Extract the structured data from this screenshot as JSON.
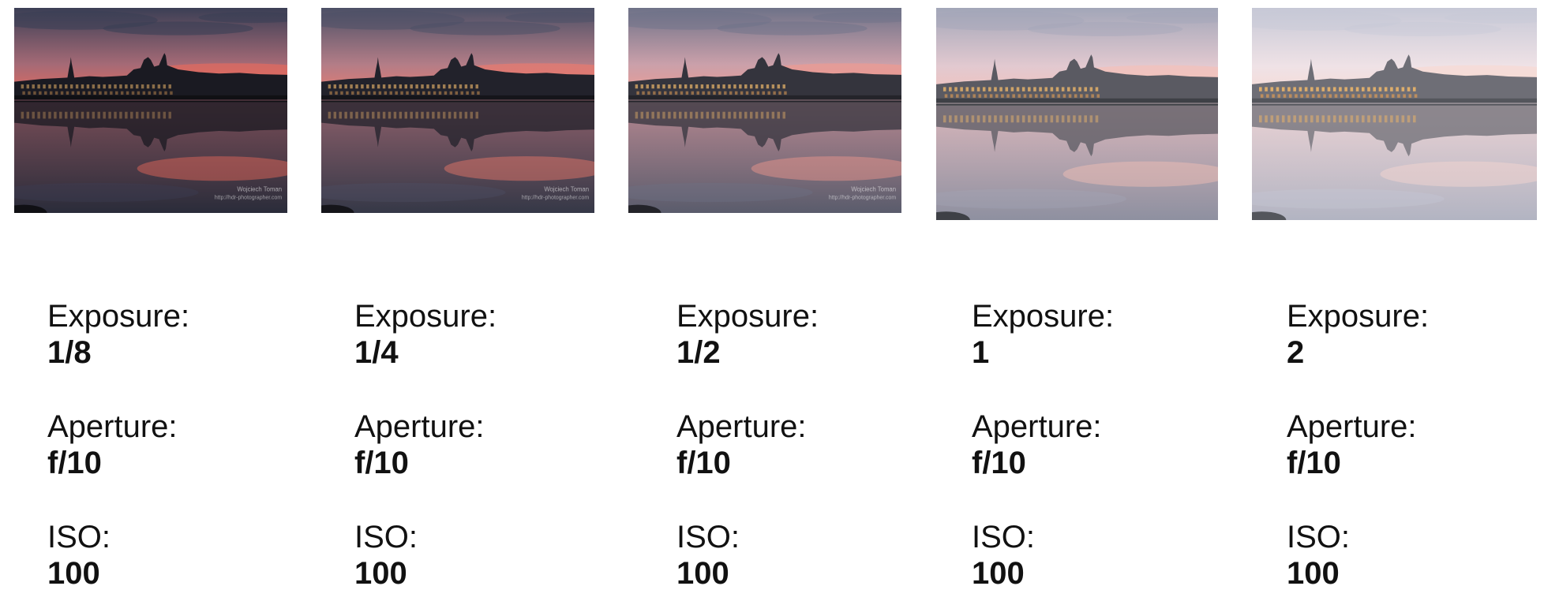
{
  "photos": [
    {
      "label": "Wojciech Toman",
      "url": "http://hdr-photographer.com",
      "brightness": 0.0,
      "sky_top": "#3b3f55",
      "sky_mid": "#a56a76",
      "sky_glow": "#ef6a5a",
      "water_top": "#7a4e58",
      "water_bottom": "#2a2c3a",
      "building": "#1a1a22",
      "ground": "#101014"
    },
    {
      "label": "Wojciech Toman",
      "url": "http://hdr-photographer.com",
      "brightness": 0.25,
      "sky_top": "#4c5066",
      "sky_mid": "#b37d87",
      "sky_glow": "#f27a6b",
      "water_top": "#8c5f6a",
      "water_bottom": "#353847",
      "building": "#22222b",
      "ground": "#15151a"
    },
    {
      "label": "Wojciech Toman",
      "url": "http://hdr-photographer.com",
      "brightness": 0.5,
      "sky_top": "#6e7288",
      "sky_mid": "#caa0aa",
      "sky_glow": "#f49a8e",
      "water_top": "#b58790",
      "water_bottom": "#5a5c6c",
      "building": "#34343d",
      "ground": "#24242a"
    },
    {
      "label": "",
      "url": "",
      "brightness": 0.75,
      "sky_top": "#a2a6b8",
      "sky_mid": "#e2c9d0",
      "sky_glow": "#f7c0b6",
      "water_top": "#d8b6bb",
      "water_bottom": "#8e90a0",
      "building": "#5a5a62",
      "ground": "#3e4046"
    },
    {
      "label": "",
      "url": "",
      "brightness": 1.0,
      "sky_top": "#c6c8d6",
      "sky_mid": "#efe2e6",
      "sky_glow": "#f9d8d0",
      "water_top": "#ead2d4",
      "water_bottom": "#b2b4c2",
      "building": "#6e6e76",
      "ground": "#54565c"
    }
  ],
  "settings": [
    {
      "exposure_label": "Exposure:",
      "exposure": "1/8",
      "aperture_label": "Aperture:",
      "aperture": "f/10",
      "iso_label": "ISO:",
      "iso": "100"
    },
    {
      "exposure_label": "Exposure:",
      "exposure": "1/4",
      "aperture_label": "Aperture:",
      "aperture": "f/10",
      "iso_label": "ISO:",
      "iso": "100"
    },
    {
      "exposure_label": "Exposure:",
      "exposure": "1/2",
      "aperture_label": "Aperture:",
      "aperture": "f/10",
      "iso_label": "ISO:",
      "iso": "100"
    },
    {
      "exposure_label": "Exposure:",
      "exposure": "1",
      "aperture_label": "Aperture:",
      "aperture": "f/10",
      "iso_label": "ISO:",
      "iso": "100"
    },
    {
      "exposure_label": "Exposure:",
      "exposure": "2",
      "aperture_label": "Aperture:",
      "aperture": "f/10",
      "iso_label": "ISO:",
      "iso": "100"
    }
  ]
}
